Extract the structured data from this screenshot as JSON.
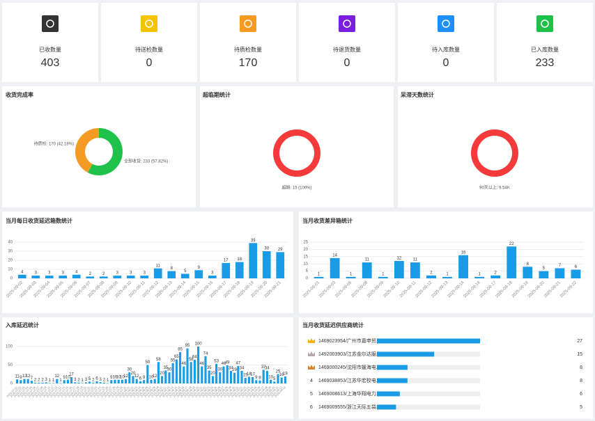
{
  "cards": [
    {
      "label": "已收数量",
      "value": 403,
      "color": "#333333"
    },
    {
      "label": "待送检数量",
      "value": 0,
      "color": "#f5c400"
    },
    {
      "label": "待质检数量",
      "value": 170,
      "color": "#f59a23"
    },
    {
      "label": "待退货数量",
      "value": 0,
      "color": "#7a1fe0"
    },
    {
      "label": "待入库数量",
      "value": 0,
      "color": "#1e8fff"
    },
    {
      "label": "已入库数量",
      "value": 233,
      "color": "#1ec24a"
    }
  ],
  "chart_data": [
    {
      "type": "pie",
      "title": "收货完成率",
      "labels": [
        "全部收货: 233 (57.82%)",
        "待质检: 170 (42.18%)"
      ],
      "values": [
        233,
        170
      ],
      "colors": [
        "#1ec24a",
        "#f59a23"
      ]
    },
    {
      "type": "pie",
      "title": "超临期统计",
      "labels": [
        "超期: 15 (100%)"
      ],
      "values": [
        15
      ],
      "colors": [
        "#f43a3a"
      ]
    },
    {
      "type": "pie",
      "title": "呆滞天数统计",
      "labels": [
        "90天以上: 9.54K"
      ],
      "values": [
        9540
      ],
      "colors": [
        "#f43a3a"
      ]
    },
    {
      "type": "bar",
      "title": "当月每日收货延迟箱数统计",
      "color": "#1a9be6",
      "grid": true,
      "categories": [
        "2025-09-02",
        "2025-09-03",
        "2025-09-04",
        "2025-09-05",
        "2025-09-06",
        "2025-09-07",
        "2025-09-08",
        "2025-09-09",
        "2025-09-10",
        "2025-09-11",
        "2025-09-12",
        "2025-09-13",
        "2025-09-14",
        "2025-09-15",
        "2025-09-16",
        "2025-09-17",
        "2025-09-18",
        "2025-09-19",
        "2025-09-20",
        "2025-09-21"
      ],
      "values": [
        4,
        3,
        3,
        3,
        4,
        2,
        2,
        3,
        3,
        3,
        11,
        8,
        5,
        9,
        3,
        17,
        18,
        39,
        30,
        29
      ],
      "ylim": [
        0,
        40
      ],
      "yticks": [
        0,
        10,
        20,
        30,
        40
      ]
    },
    {
      "type": "bar",
      "title": "当月收货差异箱统计",
      "color": "#1a9be6",
      "grid": true,
      "categories": [
        "2025-09-01",
        "2025-09-03",
        "2025-09-06",
        "2025-09-08",
        "2025-09-09",
        "2025-09-10",
        "2025-09-11",
        "2025-09-12",
        "2025-09-13",
        "2025-09-14",
        "2025-09-16",
        "2025-09-17",
        "2025-09-18",
        "2025-09-19",
        "2025-09-20",
        "2025-09-21",
        "2025-09-22"
      ],
      "values": [
        1,
        14,
        1,
        11,
        1,
        12,
        11,
        2,
        1,
        16,
        1,
        2,
        22,
        8,
        5,
        7,
        6
      ],
      "ylim": [
        0,
        25
      ],
      "yticks": [
        0,
        5,
        10,
        15,
        20,
        25
      ]
    },
    {
      "type": "bar",
      "title": "入库延迟统计",
      "color": "#1a9be6",
      "grid": true,
      "categories": [
        "2025-07-01",
        "2025-07-02",
        "2025-07-03",
        "2025-07-04",
        "2025-07-05",
        "2025-07-06",
        "2025-07-07",
        "2025-07-08",
        "2025-07-09",
        "2025-07-10",
        "2025-07-11",
        "2025-07-12",
        "2025-07-13",
        "2025-07-14",
        "2025-07-15",
        "2025-07-16",
        "2025-07-17",
        "2025-07-18",
        "2025-07-19",
        "2025-07-20",
        "2025-07-21",
        "2025-07-22",
        "2025-07-23",
        "2025-07-24",
        "2025-07-25",
        "2025-07-26",
        "2025-07-27",
        "2025-07-28",
        "2025-07-29",
        "2025-07-30",
        "2025-07-31",
        "2025-08-01",
        "2025-08-02",
        "2025-08-03",
        "2025-08-04",
        "2025-08-05",
        "2025-08-06",
        "2025-08-07",
        "2025-08-08",
        "2025-08-09",
        "2025-08-10",
        "2025-08-11",
        "2025-08-12",
        "2025-08-13",
        "2025-08-14",
        "2025-08-15",
        "2025-08-16",
        "2025-08-17",
        "2025-08-18",
        "2025-08-19",
        "2025-08-20",
        "2025-08-21",
        "2025-08-22",
        "2025-08-23",
        "2025-08-24",
        "2025-08-25",
        "2025-08-26",
        "2025-08-27",
        "2025-08-28",
        "2025-08-29",
        "2025-08-30",
        "2025-08-31",
        "2025-09-01",
        "2025-09-02",
        "2025-09-03",
        "2025-09-04",
        "2025-09-05",
        "2025-09-06",
        "2025-09-07",
        "2025-09-08",
        "2025-09-09",
        "2025-09-10",
        "2025-09-11",
        "2025-09-12",
        "2025-09-13"
      ],
      "values": [
        11,
        9,
        12,
        12,
        7,
        2,
        2,
        2,
        3,
        1,
        1,
        12,
        1,
        9,
        10,
        17,
        3,
        2,
        1,
        3,
        5,
        2,
        6,
        3,
        2,
        1,
        9,
        10,
        10,
        10,
        12,
        30,
        20,
        12,
        6,
        9,
        50,
        10,
        12,
        58,
        20,
        35,
        30,
        55,
        65,
        85,
        46,
        95,
        58,
        64,
        100,
        46,
        74,
        35,
        20,
        53,
        30,
        46,
        49,
        34,
        29,
        47,
        34,
        15,
        18,
        17,
        9,
        8,
        37,
        34,
        10,
        5,
        25,
        16,
        19
      ],
      "ylim": [
        0,
        100
      ],
      "yticks": [
        0,
        50,
        100
      ]
    }
  ],
  "supplier_ranking": {
    "title": "当月收货延迟供应商统计",
    "rows": [
      {
        "rank": 1,
        "name": "1469023954/广州市嘉申贸...",
        "value": 27
      },
      {
        "rank": 2,
        "name": "1492003903/江苏金尔达服...",
        "value": 15
      },
      {
        "rank": 3,
        "name": "1469000245/沈阳市媛海电...",
        "value": 8
      },
      {
        "rank": 4,
        "name": "1469038853/江苏华宏校电...",
        "value": 8
      },
      {
        "rank": 5,
        "name": "1469008613/上海华翔电力...",
        "value": 6
      },
      {
        "rank": 6,
        "name": "1469009555/浙江天际五袋...",
        "value": 5
      }
    ]
  }
}
